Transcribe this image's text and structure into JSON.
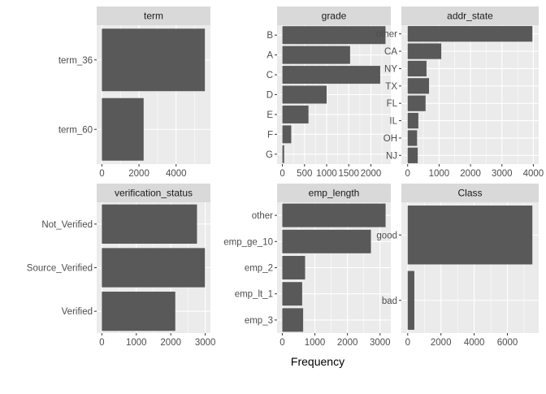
{
  "colors": {
    "panel_bg": "#ebebeb",
    "strip_bg": "#d9d9d9",
    "grid": "#ffffff",
    "bar": "#595959",
    "tick_text": "#4d4d4d"
  },
  "figure": {
    "xlabel": "Frequency"
  },
  "chart_data": [
    {
      "type": "bar",
      "orientation": "horizontal",
      "title": "term",
      "categories": [
        "term_36",
        "term_60"
      ],
      "values": [
        5550,
        2250
      ],
      "xlim": [
        -280,
        5850
      ],
      "xticks": [
        0,
        2000,
        4000
      ],
      "grid": true
    },
    {
      "type": "bar",
      "orientation": "horizontal",
      "title": "grade",
      "categories": [
        "B",
        "A",
        "C",
        "D",
        "E",
        "F",
        "G"
      ],
      "values": [
        2330,
        1530,
        2210,
        1000,
        590,
        200,
        40
      ],
      "xlim": [
        -120,
        2450
      ],
      "xticks": [
        0,
        500,
        1000,
        1500,
        2000
      ],
      "xticklabels": [
        "0",
        "500",
        "1000",
        "1500",
        "2000"
      ],
      "grid": true
    },
    {
      "type": "bar",
      "orientation": "horizontal",
      "title": "addr_state",
      "categories": [
        "other",
        "CA",
        "NY",
        "TX",
        "FL",
        "IL",
        "OH",
        "NJ"
      ],
      "values": [
        3970,
        1070,
        600,
        680,
        570,
        340,
        300,
        320
      ],
      "xlim": [
        -200,
        4170
      ],
      "xticks": [
        0,
        1000,
        2000,
        3000,
        4000
      ],
      "grid": true
    },
    {
      "type": "bar",
      "orientation": "horizontal",
      "title": "verification_status",
      "categories": [
        "Not_Verified",
        "Source_Verified",
        "Verified"
      ],
      "values": [
        2760,
        2990,
        2130
      ],
      "xlim": [
        -150,
        3150
      ],
      "xticks": [
        0,
        1000,
        2000,
        3000
      ],
      "grid": true
    },
    {
      "type": "bar",
      "orientation": "horizontal",
      "title": "emp_length",
      "categories": [
        "other",
        "emp_ge_10",
        "emp_2",
        "emp_lt_1",
        "emp_3"
      ],
      "values": [
        3170,
        2720,
        700,
        610,
        640
      ],
      "xlim": [
        -160,
        3330
      ],
      "xticks": [
        0,
        1000,
        2000,
        3000
      ],
      "grid": true
    },
    {
      "type": "bar",
      "orientation": "horizontal",
      "title": "Class",
      "categories": [
        "good",
        "bad"
      ],
      "values": [
        7500,
        400
      ],
      "xlim": [
        -380,
        7880
      ],
      "xticks": [
        0,
        2000,
        4000,
        6000
      ],
      "grid": true
    }
  ]
}
